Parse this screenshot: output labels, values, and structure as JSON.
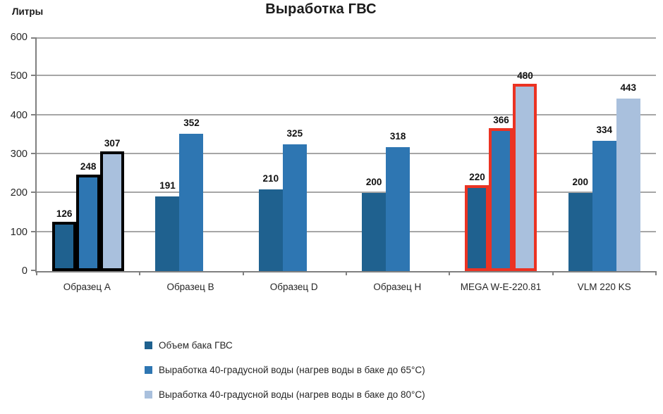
{
  "chart_data": {
    "type": "bar",
    "title": "Выработка ГВС",
    "ylabel": "Литры",
    "xlabel": "",
    "ylim": [
      0,
      600
    ],
    "yticks": [
      0,
      100,
      200,
      300,
      400,
      500,
      600
    ],
    "grid": true,
    "legend_position": "bottom-left",
    "categories": [
      "Образец A",
      "Образец B",
      "Образец D",
      "Образец H",
      "MEGA W-E-220.81",
      "VLM 220 KS"
    ],
    "series": [
      {
        "name": "Объем бака ГВС",
        "color": "#1F618F",
        "values": [
          126,
          191,
          210,
          200,
          220,
          200
        ]
      },
      {
        "name": "Выработка 40-градусной воды (нагрев воды в баке до 65°С)",
        "color": "#2E76B2",
        "values": [
          248,
          352,
          325,
          318,
          366,
          334
        ]
      },
      {
        "name": "Выработка 40-градусной воды (нагрев воды в баке до 80°С)",
        "color": "#A9C0DD",
        "values": [
          307,
          null,
          null,
          null,
          480,
          443
        ]
      }
    ],
    "highlights": [
      {
        "category_index": 0,
        "category": "Образец A",
        "outline_color": "#000000"
      },
      {
        "category_index": 4,
        "category": "MEGA W-E-220.81",
        "outline_color": "#EB3323"
      }
    ],
    "colors": {
      "gridline": "#A6A6A6",
      "axis": "#808080",
      "text": "#262626"
    }
  }
}
